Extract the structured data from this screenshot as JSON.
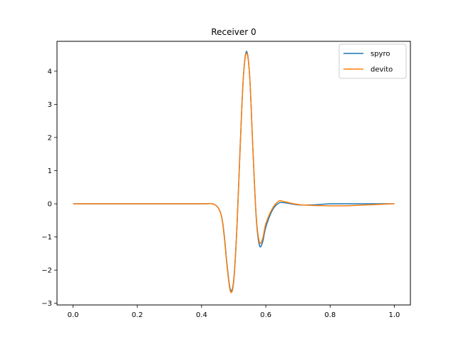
{
  "chart_data": {
    "type": "line",
    "title": "Receiver 0",
    "xlabel": "",
    "ylabel": "",
    "xlim": [
      -0.05,
      1.05
    ],
    "ylim": [
      -3.05,
      4.9
    ],
    "xticks": [
      0.0,
      0.2,
      0.4,
      0.6,
      0.8,
      1.0
    ],
    "xtick_labels": [
      "0.0",
      "0.2",
      "0.4",
      "0.6",
      "0.8",
      "1.0"
    ],
    "yticks": [
      -3,
      -2,
      -1,
      0,
      1,
      2,
      3,
      4
    ],
    "ytick_labels": [
      "−3",
      "−2",
      "−1",
      "0",
      "1",
      "2",
      "3",
      "4"
    ],
    "grid": false,
    "legend": "top-right",
    "series": [
      {
        "name": "spyro",
        "color": "#1f77b4",
        "x": [
          0.0,
          0.1,
          0.2,
          0.3,
          0.4,
          0.44,
          0.46,
          0.47,
          0.48,
          0.49,
          0.5,
          0.51,
          0.52,
          0.53,
          0.54,
          0.55,
          0.56,
          0.57,
          0.58,
          0.59,
          0.6,
          0.62,
          0.64,
          0.66,
          0.7,
          0.75,
          0.8,
          0.85,
          0.9,
          1.0
        ],
        "y": [
          0,
          0,
          0,
          0,
          0,
          -0.02,
          -0.3,
          -0.9,
          -1.9,
          -2.6,
          -2.3,
          -0.7,
          1.7,
          3.8,
          4.6,
          3.8,
          1.6,
          -0.4,
          -1.25,
          -1.15,
          -0.7,
          -0.2,
          0.02,
          0.03,
          -0.03,
          -0.03,
          0.0,
          0.0,
          0.0,
          0.0
        ]
      },
      {
        "name": "devito",
        "color": "#ff7f0e",
        "x": [
          0.0,
          0.1,
          0.2,
          0.3,
          0.4,
          0.44,
          0.46,
          0.47,
          0.48,
          0.49,
          0.5,
          0.51,
          0.52,
          0.53,
          0.54,
          0.55,
          0.56,
          0.57,
          0.58,
          0.59,
          0.6,
          0.62,
          0.64,
          0.66,
          0.7,
          0.75,
          0.8,
          0.85,
          0.9,
          1.0
        ],
        "y": [
          0,
          0,
          0,
          0,
          0,
          -0.02,
          -0.3,
          -0.95,
          -1.95,
          -2.65,
          -2.35,
          -0.75,
          1.65,
          3.8,
          4.55,
          3.8,
          1.6,
          -0.35,
          -1.15,
          -1.05,
          -0.6,
          -0.15,
          0.08,
          0.06,
          -0.02,
          -0.05,
          -0.06,
          -0.06,
          -0.04,
          0.0
        ]
      }
    ]
  }
}
